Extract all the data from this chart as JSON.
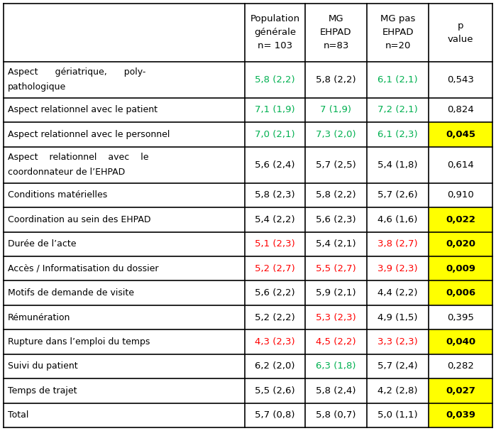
{
  "headers": [
    "Population\ngénérale\nn= 103",
    "MG\nEHPAD\nn=83",
    "MG pas\nEHPAD\nn=20",
    "p\nvalue"
  ],
  "rows": [
    {
      "label_lines": [
        "Aspect      gériatrique,      poly-",
        "pathologique"
      ],
      "col1": "5,8 (2,2)",
      "col1_color": "green",
      "col2": "5,8 (2,2)",
      "col2_color": "black",
      "col3": "6,1 (2,1)",
      "col3_color": "green",
      "col4": "0,543",
      "col4_highlight": false,
      "two_line": true
    },
    {
      "label_lines": [
        "Aspect relationnel avec le patient"
      ],
      "col1": "7,1 (1,9)",
      "col1_color": "green",
      "col2": "7 (1,9)",
      "col2_color": "green",
      "col3": "7,2 (2,1)",
      "col3_color": "green",
      "col4": "0,824",
      "col4_highlight": false,
      "two_line": false
    },
    {
      "label_lines": [
        "Aspect relationnel avec le personnel"
      ],
      "col1": "7,0 (2,1)",
      "col1_color": "green",
      "col2": "7,3 (2,0)",
      "col2_color": "green",
      "col3": "6,1 (2,3)",
      "col3_color": "green",
      "col4": "0,045",
      "col4_highlight": true,
      "two_line": false
    },
    {
      "label_lines": [
        "Aspect    relationnel    avec    le",
        "coordonnateur de l’EHPAD"
      ],
      "col1": "5,6 (2,4)",
      "col1_color": "black",
      "col2": "5,7 (2,5)",
      "col2_color": "black",
      "col3": "5,4 (1,8)",
      "col3_color": "black",
      "col4": "0,614",
      "col4_highlight": false,
      "two_line": true
    },
    {
      "label_lines": [
        "Conditions matérielles"
      ],
      "col1": "5,8 (2,3)",
      "col1_color": "black",
      "col2": "5,8 (2,2)",
      "col2_color": "black",
      "col3": "5,7 (2,6)",
      "col3_color": "black",
      "col4": "0,910",
      "col4_highlight": false,
      "two_line": false
    },
    {
      "label_lines": [
        "Coordination au sein des EHPAD"
      ],
      "col1": "5,4 (2,2)",
      "col1_color": "black",
      "col2": "5,6 (2,3)",
      "col2_color": "black",
      "col3": "4,6 (1,6)",
      "col3_color": "black",
      "col4": "0,022",
      "col4_highlight": true,
      "two_line": false
    },
    {
      "label_lines": [
        "Durée de l’acte"
      ],
      "col1": "5,1 (2,3)",
      "col1_color": "red",
      "col2": "5,4 (2,1)",
      "col2_color": "black",
      "col3": "3,8 (2,7)",
      "col3_color": "red",
      "col4": "0,020",
      "col4_highlight": true,
      "two_line": false
    },
    {
      "label_lines": [
        "Accès / Informatisation du dossier"
      ],
      "col1": "5,2 (2,7)",
      "col1_color": "red",
      "col2": "5,5 (2,7)",
      "col2_color": "red",
      "col3": "3,9 (2,3)",
      "col3_color": "red",
      "col4": "0,009",
      "col4_highlight": true,
      "two_line": false
    },
    {
      "label_lines": [
        "Motifs de demande de visite"
      ],
      "col1": "5,6 (2,2)",
      "col1_color": "black",
      "col2": "5,9 (2,1)",
      "col2_color": "black",
      "col3": "4,4 (2,2)",
      "col3_color": "black",
      "col4": "0,006",
      "col4_highlight": true,
      "two_line": false
    },
    {
      "label_lines": [
        "Rémunération"
      ],
      "col1": "5,2 (2,2)",
      "col1_color": "black",
      "col2": "5,3 (2,3)",
      "col2_color": "red",
      "col3": "4,9 (1,5)",
      "col3_color": "black",
      "col4": "0,395",
      "col4_highlight": false,
      "two_line": false
    },
    {
      "label_lines": [
        "Rupture dans l’emploi du temps"
      ],
      "col1": "4,3 (2,3)",
      "col1_color": "red",
      "col2": "4,5 (2,2)",
      "col2_color": "red",
      "col3": "3,3 (2,3)",
      "col3_color": "red",
      "col4": "0,040",
      "col4_highlight": true,
      "two_line": false
    },
    {
      "label_lines": [
        "Suivi du patient"
      ],
      "col1": "6,2 (2,0)",
      "col1_color": "black",
      "col2": "6,3 (1,8)",
      "col2_color": "green",
      "col3": "5,7 (2,4)",
      "col3_color": "black",
      "col4": "0,282",
      "col4_highlight": false,
      "two_line": false
    },
    {
      "label_lines": [
        "Temps de trajet"
      ],
      "col1": "5,5 (2,6)",
      "col1_color": "black",
      "col2": "5,8 (2,4)",
      "col2_color": "black",
      "col3": "4,2 (2,8)",
      "col3_color": "black",
      "col4": "0,027",
      "col4_highlight": true,
      "two_line": false
    },
    {
      "label_lines": [
        "Total"
      ],
      "col1": "5,7 (0,8)",
      "col1_color": "black",
      "col2": "5,8 (0,7)",
      "col2_color": "black",
      "col3": "5,0 (1,1)",
      "col3_color": "black",
      "col4": "0,039",
      "col4_highlight": true,
      "two_line": false
    }
  ],
  "highlight_color": "#FFFF00",
  "green_color": "#00B050",
  "red_color": "#FF0000",
  "figsize": [
    6.99,
    6.07
  ],
  "dpi": 100
}
